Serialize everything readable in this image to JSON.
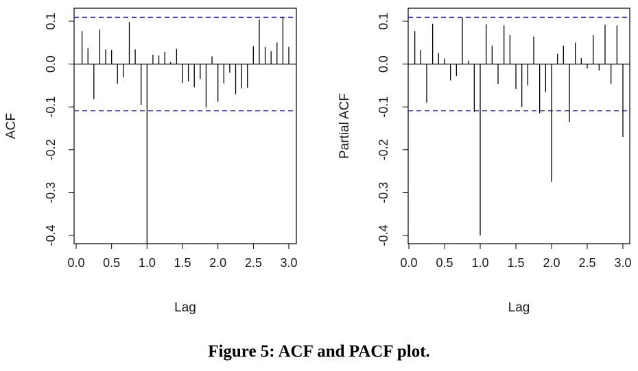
{
  "caption": "Figure 5: ACF and PACF plot.",
  "colors": {
    "bars": "#000000",
    "confidence_band": "#3333dd",
    "frame": "#000000"
  },
  "chart_data": [
    {
      "type": "bar",
      "xlabel": "Lag",
      "ylabel": "ACF",
      "xlim": [
        0,
        3.0
      ],
      "ylim": [
        -0.4,
        0.1
      ],
      "x_ticks": [
        "0.0",
        "0.5",
        "1.0",
        "1.5",
        "2.0",
        "2.5",
        "3.0"
      ],
      "y_ticks": [
        "-0.4",
        "-0.3",
        "-0.2",
        "-0.1",
        "0.0",
        "0.1"
      ],
      "confidence_limit": 0.109,
      "grid": false,
      "lags": [
        0.0833,
        0.1667,
        0.25,
        0.3333,
        0.4167,
        0.5,
        0.5833,
        0.6667,
        0.75,
        0.8333,
        0.9167,
        1.0,
        1.0833,
        1.1667,
        1.25,
        1.3333,
        1.4167,
        1.5,
        1.5833,
        1.6667,
        1.75,
        1.8333,
        1.9167,
        2.0,
        2.0833,
        2.1667,
        2.25,
        2.3333,
        2.4167,
        2.5,
        2.5833,
        2.6667,
        2.75,
        2.8333,
        2.9167,
        3.0
      ],
      "values": [
        0.077,
        0.037,
        -0.082,
        0.081,
        0.034,
        0.033,
        -0.046,
        -0.031,
        0.098,
        0.034,
        -0.095,
        -0.42,
        0.022,
        0.02,
        0.028,
        0.005,
        0.035,
        -0.044,
        -0.04,
        -0.054,
        -0.035,
        -0.101,
        0.018,
        -0.088,
        -0.045,
        -0.02,
        -0.07,
        -0.057,
        -0.055,
        0.042,
        0.104,
        0.04,
        0.03,
        0.05,
        0.11,
        0.04
      ]
    },
    {
      "type": "bar",
      "xlabel": "Lag",
      "ylabel": "Partial ACF",
      "xlim": [
        0,
        3.0
      ],
      "ylim": [
        -0.4,
        0.1
      ],
      "x_ticks": [
        "0.0",
        "0.5",
        "1.0",
        "1.5",
        "2.0",
        "2.5",
        "3.0"
      ],
      "y_ticks": [
        "-0.4",
        "-0.3",
        "-0.2",
        "-0.1",
        "0.0",
        "0.1"
      ],
      "confidence_limit": 0.109,
      "grid": false,
      "lags": [
        0.0833,
        0.1667,
        0.25,
        0.3333,
        0.4167,
        0.5,
        0.5833,
        0.6667,
        0.75,
        0.8333,
        0.9167,
        1.0,
        1.0833,
        1.1667,
        1.25,
        1.3333,
        1.4167,
        1.5,
        1.5833,
        1.6667,
        1.75,
        1.8333,
        1.9167,
        2.0,
        2.0833,
        2.1667,
        2.25,
        2.3333,
        2.4167,
        2.5,
        2.5833,
        2.6667,
        2.75,
        2.8333,
        2.9167,
        3.0
      ],
      "values": [
        0.077,
        0.033,
        -0.09,
        0.094,
        0.026,
        0.013,
        -0.038,
        -0.028,
        0.108,
        0.008,
        -0.112,
        -0.4,
        0.093,
        0.043,
        -0.047,
        0.09,
        0.068,
        -0.058,
        -0.1,
        -0.05,
        0.064,
        -0.115,
        -0.065,
        -0.275,
        0.024,
        0.043,
        -0.135,
        0.05,
        0.014,
        -0.01,
        0.068,
        -0.015,
        0.092,
        -0.046,
        0.09,
        -0.17
      ]
    }
  ]
}
